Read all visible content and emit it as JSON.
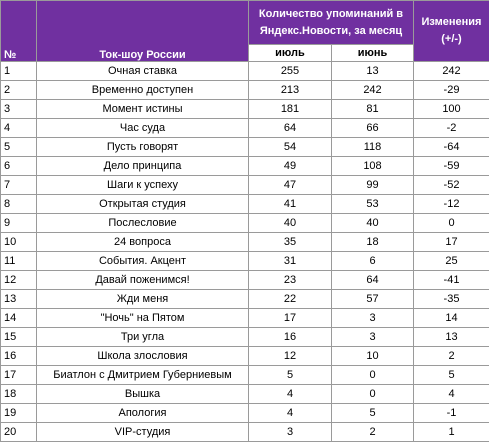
{
  "header": {
    "num": "№",
    "show": "Ток-шоу России",
    "mentions": "Количество упоминаний в Яндекс.Новости, за месяц",
    "july": "июль",
    "june": "июнь",
    "change": "Изменения (+/-)"
  },
  "rows": [
    [
      1,
      "Очная ставка",
      255,
      13,
      242
    ],
    [
      2,
      "Временно доступен",
      213,
      242,
      -29
    ],
    [
      3,
      "Момент истины",
      181,
      81,
      100
    ],
    [
      4,
      "Час суда",
      64,
      66,
      -2
    ],
    [
      5,
      "Пусть говорят",
      54,
      118,
      -64
    ],
    [
      6,
      "Дело принципа",
      49,
      108,
      -59
    ],
    [
      7,
      "Шаги к успеху",
      47,
      99,
      -52
    ],
    [
      8,
      "Открытая студия",
      41,
      53,
      -12
    ],
    [
      9,
      "Послесловие",
      40,
      40,
      0
    ],
    [
      10,
      "24 вопроса",
      35,
      18,
      17
    ],
    [
      11,
      "События. Акцент",
      31,
      6,
      25
    ],
    [
      12,
      "Давай поженимся!",
      23,
      64,
      -41
    ],
    [
      13,
      "Жди меня",
      22,
      57,
      -35
    ],
    [
      14,
      "\"Ночь\" на Пятом",
      17,
      3,
      14
    ],
    [
      15,
      "Три угла",
      16,
      3,
      13
    ],
    [
      16,
      "Школа злословия",
      12,
      10,
      2
    ],
    [
      17,
      "Биатлон с Дмитрием Губерниевым",
      5,
      0,
      5
    ],
    [
      18,
      "Вышка",
      4,
      0,
      4
    ],
    [
      19,
      "Апология",
      4,
      5,
      -1
    ],
    [
      20,
      "VIP-студия",
      3,
      2,
      1
    ]
  ]
}
